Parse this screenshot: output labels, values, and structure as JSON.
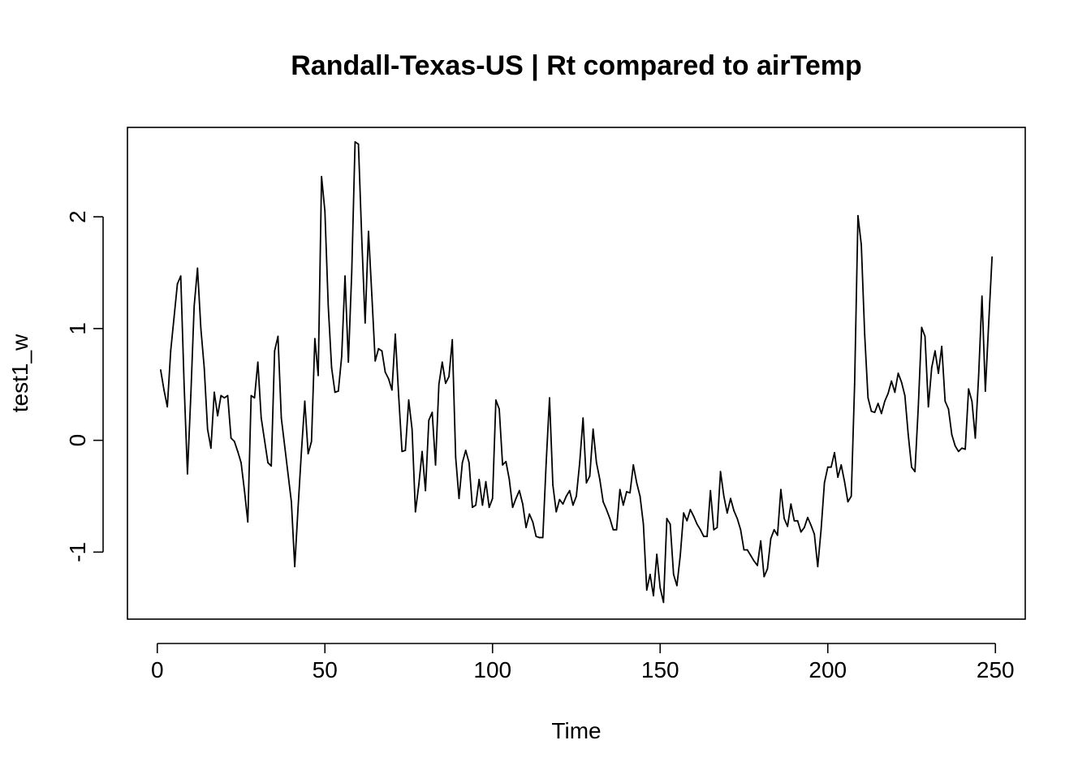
{
  "chart_data": {
    "type": "line",
    "title": "Randall-Texas-US | Rt compared to airTemp",
    "xlabel": "Time",
    "ylabel": "test1_w",
    "xlim": [
      -8.9,
      258.9
    ],
    "ylim": [
      -1.6,
      2.8
    ],
    "x_ticks": [
      {
        "value": 0,
        "label": "0"
      },
      {
        "value": 50,
        "label": "50"
      },
      {
        "value": 100,
        "label": "100"
      },
      {
        "value": 150,
        "label": "150"
      },
      {
        "value": 200,
        "label": "200"
      },
      {
        "value": 250,
        "label": "250"
      }
    ],
    "y_ticks": [
      {
        "value": -1,
        "label": "-1"
      },
      {
        "value": 0,
        "label": "0"
      },
      {
        "value": 1,
        "label": "1"
      },
      {
        "value": 2,
        "label": "2"
      }
    ],
    "grid": false,
    "legend": "none",
    "line_color": "#000000",
    "series": [
      {
        "x_start": 1,
        "x_step": 1,
        "values": [
          0.63,
          0.45,
          0.3,
          0.8,
          1.1,
          1.4,
          1.47,
          0.5,
          -0.3,
          0.4,
          1.2,
          1.54,
          1.0,
          0.65,
          0.1,
          -0.07,
          0.43,
          0.22,
          0.4,
          0.38,
          0.4,
          0.02,
          -0.01,
          -0.1,
          -0.2,
          -0.45,
          -0.73,
          0.4,
          0.38,
          0.7,
          0.2,
          0.0,
          -0.2,
          -0.23,
          0.8,
          0.93,
          0.2,
          -0.05,
          -0.3,
          -0.55,
          -1.13,
          -0.6,
          -0.1,
          0.35,
          -0.12,
          -0.01,
          0.91,
          0.58,
          2.36,
          2.05,
          1.2,
          0.65,
          0.43,
          0.44,
          0.75,
          1.47,
          0.7,
          1.5,
          2.67,
          2.65,
          1.8,
          1.05,
          1.87,
          1.3,
          0.71,
          0.82,
          0.8,
          0.61,
          0.55,
          0.45,
          0.95,
          0.4,
          -0.1,
          -0.09,
          0.36,
          0.1,
          -0.64,
          -0.4,
          -0.1,
          -0.45,
          0.18,
          0.25,
          -0.22,
          0.5,
          0.7,
          0.51,
          0.57,
          0.9,
          -0.15,
          -0.52,
          -0.2,
          -0.09,
          -0.2,
          -0.6,
          -0.58,
          -0.35,
          -0.58,
          -0.37,
          -0.6,
          -0.52,
          0.36,
          0.28,
          -0.22,
          -0.19,
          -0.35,
          -0.6,
          -0.52,
          -0.45,
          -0.57,
          -0.78,
          -0.66,
          -0.73,
          -0.86,
          -0.87,
          -0.87,
          -0.2,
          0.38,
          -0.4,
          -0.64,
          -0.53,
          -0.57,
          -0.5,
          -0.45,
          -0.58,
          -0.5,
          -0.2,
          0.2,
          -0.38,
          -0.32,
          0.1,
          -0.2,
          -0.35,
          -0.55,
          -0.62,
          -0.7,
          -0.8,
          -0.8,
          -0.44,
          -0.58,
          -0.46,
          -0.47,
          -0.22,
          -0.38,
          -0.5,
          -0.75,
          -1.34,
          -1.2,
          -1.39,
          -1.02,
          -1.32,
          -1.45,
          -0.7,
          -0.75,
          -1.2,
          -1.3,
          -1.03,
          -0.65,
          -0.72,
          -0.62,
          -0.68,
          -0.75,
          -0.8,
          -0.86,
          -0.86,
          -0.45,
          -0.8,
          -0.78,
          -0.28,
          -0.5,
          -0.65,
          -0.52,
          -0.63,
          -0.7,
          -0.8,
          -0.98,
          -0.98,
          -1.03,
          -1.08,
          -1.12,
          -0.9,
          -1.22,
          -1.15,
          -0.88,
          -0.8,
          -0.85,
          -0.44,
          -0.7,
          -0.77,
          -0.57,
          -0.72,
          -0.72,
          -0.82,
          -0.78,
          -0.69,
          -0.76,
          -0.84,
          -1.13,
          -0.8,
          -0.38,
          -0.24,
          -0.24,
          -0.11,
          -0.33,
          -0.22,
          -0.37,
          -0.55,
          -0.5,
          0.5,
          2.01,
          1.75,
          0.95,
          0.38,
          0.26,
          0.25,
          0.33,
          0.24,
          0.35,
          0.42,
          0.53,
          0.43,
          0.6,
          0.52,
          0.4,
          0.05,
          -0.24,
          -0.28,
          0.3,
          1.01,
          0.93,
          0.3,
          0.65,
          0.8,
          0.6,
          0.84,
          0.35,
          0.28,
          0.05,
          -0.05,
          -0.1,
          -0.07,
          -0.08,
          0.46,
          0.35,
          0.02,
          0.58,
          1.29,
          0.44,
          1.05,
          1.64
        ]
      }
    ]
  }
}
